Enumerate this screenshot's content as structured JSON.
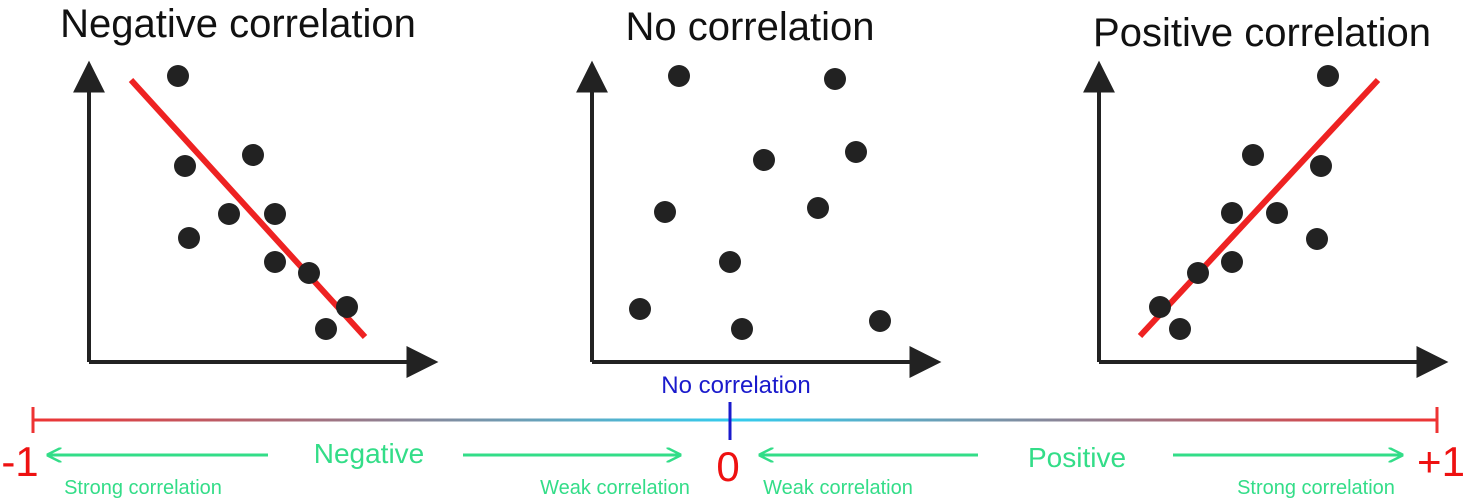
{
  "panels": [
    {
      "id": "negative",
      "title": "Negative correlation"
    },
    {
      "id": "none",
      "title": "No correlation"
    },
    {
      "id": "positive",
      "title": "Positive correlation"
    }
  ],
  "scale": {
    "min_label": "-1",
    "zero_label": "0",
    "max_label": "+1",
    "center_label": "No correlation",
    "negative_label": "Negative",
    "positive_label": "Positive",
    "strong_left": "Strong correlation",
    "weak_left": "Weak correlation",
    "weak_right": "Weak correlation",
    "strong_right": "Strong correlation"
  },
  "colors": {
    "points": "#222222",
    "axes": "#222222",
    "trend_line": "#ee2222",
    "scale_end": "#ee3333",
    "scale_mid": "#33ccee",
    "center_marker": "#1a1acc",
    "green_text": "#33dd88",
    "red_text": "#ee1111"
  }
}
